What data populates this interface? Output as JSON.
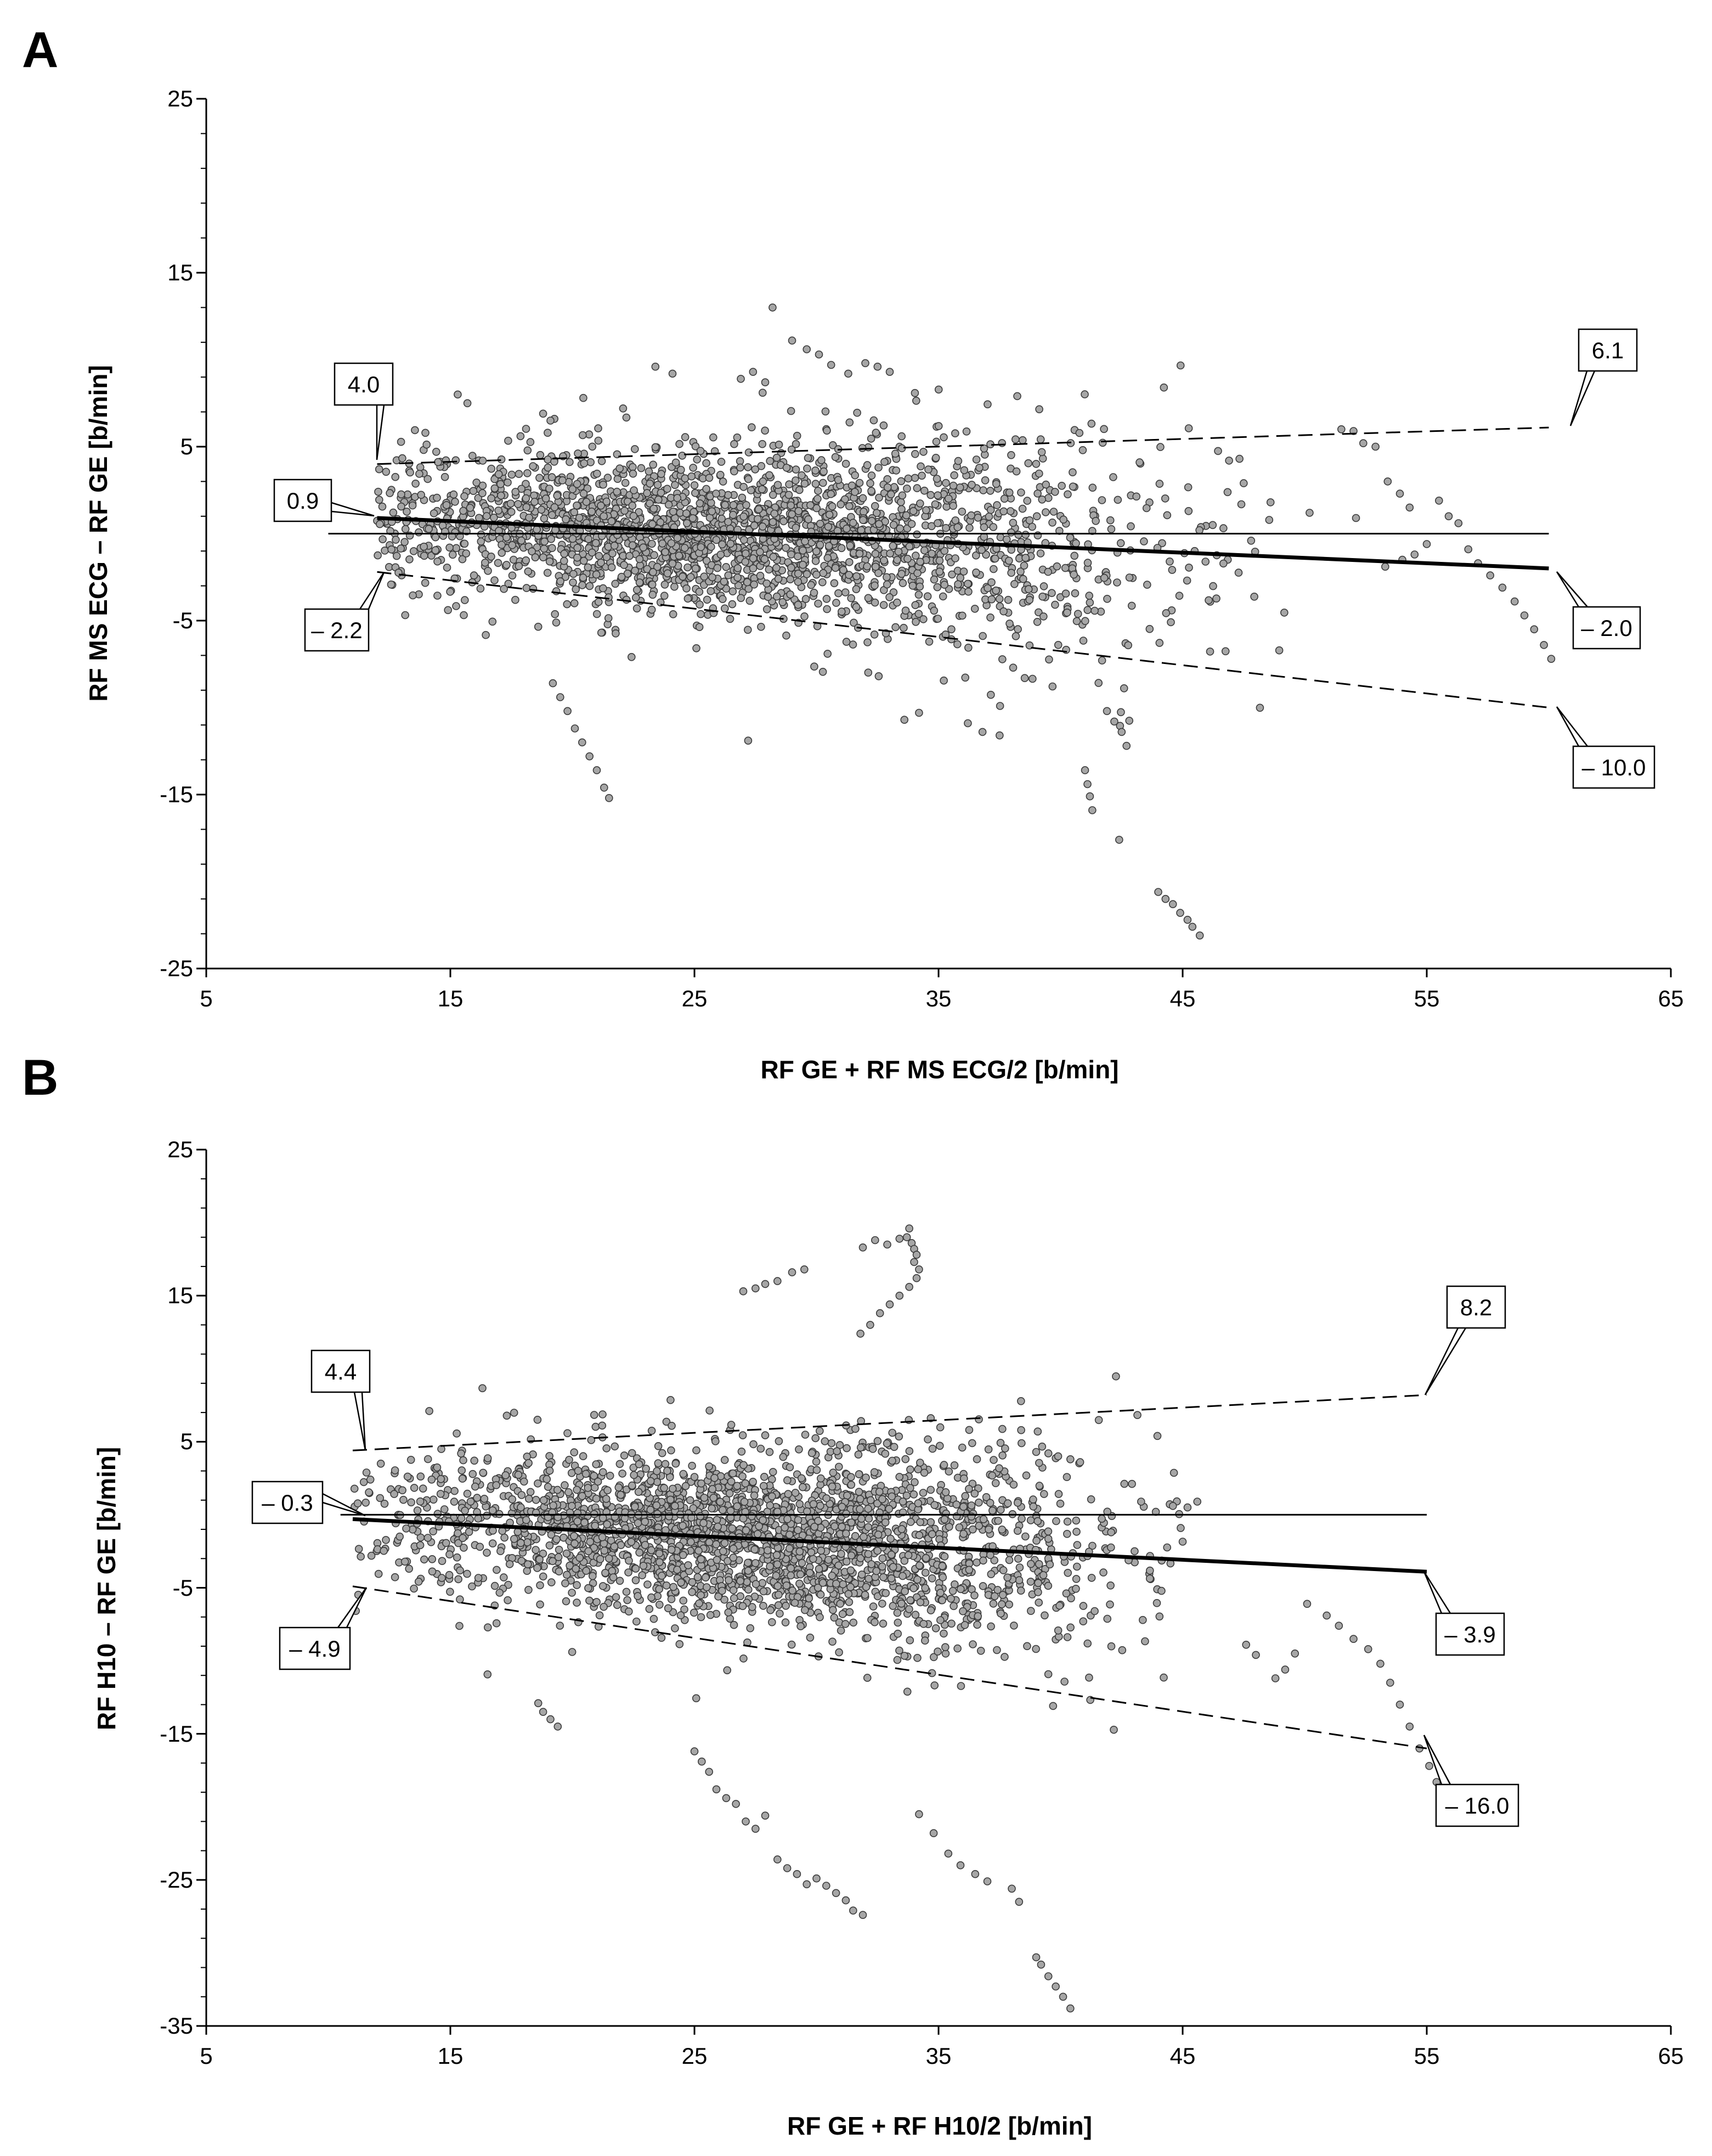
{
  "chart_data": [
    {
      "type": "scatter",
      "panel_label": "A",
      "xlabel": "RF GE + RF MS ECG/2 [b/min]",
      "ylabel": "RF MS ECG – RF GE [b/min]",
      "xlim": [
        5,
        65
      ],
      "ylim": [
        -25,
        25
      ],
      "xticks": [
        "5",
        "15",
        "25",
        "35",
        "45",
        "55",
        "65"
      ],
      "yticks": [
        "25",
        "15",
        "5",
        "-5",
        "-15",
        "-25"
      ],
      "point_cloud": {
        "n": 2400,
        "x_range": [
          12,
          60
        ],
        "x_center": 26,
        "x_spread": 8.5,
        "bias_intercept": 0.9,
        "bias_end": -2.0,
        "spread_sd": 2.3,
        "seed": 11
      },
      "outlier_series": [
        [
          [
            21.5,
            -15.2
          ],
          [
            21.3,
            -14.6
          ],
          [
            21.0,
            -13.6
          ],
          [
            20.7,
            -12.8
          ],
          [
            20.4,
            -12.0
          ],
          [
            20.1,
            -11.2
          ],
          [
            19.8,
            -10.2
          ],
          [
            19.5,
            -9.4
          ],
          [
            19.2,
            -8.6
          ]
        ],
        [
          [
            45.7,
            -23.1
          ],
          [
            45.4,
            -22.6
          ],
          [
            45.2,
            -22.2
          ],
          [
            44.9,
            -21.8
          ],
          [
            44.6,
            -21.3
          ],
          [
            44.3,
            -21.0
          ],
          [
            44.0,
            -20.6
          ]
        ],
        [
          [
            42.4,
            -17.6
          ],
          [
            41.3,
            -15.9
          ],
          [
            41.2,
            -15.1
          ],
          [
            41.1,
            -14.4
          ],
          [
            41.0,
            -13.6
          ],
          [
            42.7,
            -12.2
          ],
          [
            42.5,
            -11.4
          ],
          [
            42.2,
            -10.8
          ],
          [
            41.9,
            -10.2
          ]
        ],
        [
          [
            28.2,
            13.0
          ],
          [
            29.0,
            11.1
          ],
          [
            29.6,
            10.6
          ],
          [
            30.1,
            10.3
          ],
          [
            30.6,
            9.7
          ],
          [
            31.3,
            9.2
          ],
          [
            32.0,
            9.8
          ],
          [
            32.5,
            9.6
          ],
          [
            33.0,
            9.3
          ],
          [
            23.4,
            9.6
          ],
          [
            24.1,
            9.2
          ],
          [
            26.9,
            8.9
          ],
          [
            27.4,
            9.3
          ],
          [
            27.9,
            8.7
          ]
        ],
        [
          [
            51.5,
            6.0
          ],
          [
            52.0,
            5.9
          ],
          [
            52.4,
            5.2
          ],
          [
            52.9,
            5.0
          ],
          [
            53.4,
            3.0
          ],
          [
            53.9,
            2.3
          ],
          [
            54.3,
            1.5
          ],
          [
            52.1,
            0.9
          ],
          [
            50.2,
            1.2
          ],
          [
            48.6,
            1.8
          ]
        ],
        [
          [
            55.5,
            1.9
          ],
          [
            55.9,
            1.0
          ],
          [
            56.3,
            0.6
          ],
          [
            56.7,
            -0.9
          ],
          [
            57.1,
            -1.7
          ],
          [
            57.6,
            -2.4
          ],
          [
            58.1,
            -3.1
          ],
          [
            58.6,
            -3.9
          ],
          [
            59.0,
            -4.7
          ],
          [
            59.4,
            -5.5
          ],
          [
            59.8,
            -6.4
          ],
          [
            60.1,
            -7.2
          ],
          [
            55.0,
            -0.6
          ],
          [
            54.5,
            -1.2
          ],
          [
            54.0,
            -1.5
          ],
          [
            53.3,
            -1.9
          ]
        ],
        [
          [
            27.2,
            -11.9
          ],
          [
            36.2,
            -10.9
          ],
          [
            36.8,
            -11.4
          ],
          [
            37.5,
            -11.6
          ],
          [
            33.6,
            -10.7
          ],
          [
            34.2,
            -10.3
          ],
          [
            15.3,
            8.0
          ],
          [
            15.7,
            7.5
          ],
          [
            18.8,
            6.9
          ],
          [
            19.1,
            6.5
          ],
          [
            46.9,
            4.2
          ],
          [
            47.5,
            2.9
          ]
        ]
      ],
      "lines": {
        "zero_line": {
          "x": [
            10,
            60
          ],
          "y": [
            0,
            0
          ]
        },
        "bias_line": {
          "x": [
            12,
            60
          ],
          "y": [
            0.9,
            -2.0
          ]
        },
        "upper_loa": {
          "x": [
            12,
            60
          ],
          "y": [
            4.0,
            6.1
          ]
        },
        "lower_loa": {
          "x": [
            12,
            60
          ],
          "y": [
            -2.2,
            -10.0
          ]
        }
      },
      "callouts": [
        {
          "label": "4.0"
        },
        {
          "label": "6.1"
        },
        {
          "label": "0.9"
        },
        {
          "label": "– 2.2"
        },
        {
          "label": "– 2.0"
        },
        {
          "label": "– 10.0"
        }
      ]
    },
    {
      "type": "scatter",
      "panel_label": "B",
      "xlabel": "RF GE + RF H10/2 [b/min]",
      "ylabel": "RF H10 – RF GE [b/min]",
      "xlim": [
        5,
        65
      ],
      "ylim": [
        -35,
        25
      ],
      "xticks": [
        "5",
        "15",
        "25",
        "35",
        "45",
        "55",
        "65"
      ],
      "yticks": [
        "25",
        "15",
        "5",
        "-5",
        "-15",
        "-25",
        "-35"
      ],
      "point_cloud": {
        "n": 2600,
        "x_range": [
          11,
          55
        ],
        "x_center": 27,
        "x_spread": 8,
        "bias_intercept": -0.3,
        "bias_end": -3.9,
        "spread_sd": 2.8,
        "seed": 23
      },
      "outlier_series": [
        [
          [
            33.8,
            19.6
          ],
          [
            33.7,
            19.0
          ],
          [
            33.9,
            18.6
          ],
          [
            34.0,
            18.2
          ],
          [
            34.1,
            17.8
          ],
          [
            34.0,
            17.3
          ],
          [
            33.4,
            18.9
          ],
          [
            32.9,
            18.5
          ],
          [
            32.4,
            18.8
          ],
          [
            31.9,
            18.3
          ],
          [
            34.2,
            16.8
          ],
          [
            34.1,
            16.2
          ],
          [
            33.8,
            15.6
          ],
          [
            33.4,
            15.0
          ],
          [
            33.0,
            14.4
          ],
          [
            32.6,
            13.8
          ],
          [
            32.2,
            13.0
          ],
          [
            31.8,
            12.4
          ]
        ],
        [
          [
            29.5,
            16.8
          ],
          [
            29.0,
            16.6
          ],
          [
            28.4,
            16.0
          ],
          [
            27.9,
            15.8
          ],
          [
            27.5,
            15.5
          ],
          [
            27.0,
            15.3
          ]
        ],
        [
          [
            40.4,
            -33.8
          ],
          [
            40.1,
            -33.0
          ],
          [
            39.8,
            -32.3
          ],
          [
            39.5,
            -31.6
          ],
          [
            39.2,
            -30.8
          ],
          [
            39.0,
            -30.3
          ]
        ],
        [
          [
            38.3,
            -26.5
          ],
          [
            38.0,
            -25.6
          ],
          [
            37.0,
            -25.1
          ],
          [
            36.5,
            -24.6
          ],
          [
            35.9,
            -24.0
          ],
          [
            35.4,
            -23.2
          ],
          [
            34.8,
            -21.8
          ],
          [
            34.2,
            -20.5
          ]
        ],
        [
          [
            31.9,
            -27.4
          ],
          [
            31.5,
            -27.1
          ],
          [
            31.2,
            -26.4
          ],
          [
            30.8,
            -25.9
          ],
          [
            30.4,
            -25.4
          ],
          [
            30.0,
            -24.9
          ],
          [
            29.6,
            -25.3
          ],
          [
            29.2,
            -24.6
          ],
          [
            28.8,
            -24.2
          ],
          [
            28.4,
            -23.6
          ]
        ],
        [
          [
            27.9,
            -20.6
          ],
          [
            27.5,
            -21.5
          ],
          [
            27.1,
            -21.0
          ],
          [
            26.7,
            -19.8
          ],
          [
            26.3,
            -19.4
          ],
          [
            25.9,
            -18.8
          ],
          [
            25.6,
            -17.6
          ],
          [
            25.3,
            -16.9
          ],
          [
            25.0,
            -16.2
          ]
        ],
        [
          [
            19.4,
            -14.5
          ],
          [
            19.1,
            -14.0
          ],
          [
            18.8,
            -13.5
          ],
          [
            18.6,
            -12.9
          ]
        ],
        [
          [
            52.0,
            -8.5
          ],
          [
            52.6,
            -9.2
          ],
          [
            53.1,
            -10.2
          ],
          [
            53.5,
            -11.5
          ],
          [
            53.9,
            -13.0
          ],
          [
            54.3,
            -14.5
          ],
          [
            54.7,
            -16.0
          ],
          [
            55.1,
            -17.2
          ],
          [
            55.4,
            -18.3
          ],
          [
            51.4,
            -7.6
          ],
          [
            50.9,
            -6.9
          ],
          [
            50.1,
            -6.1
          ],
          [
            49.6,
            -9.5
          ],
          [
            49.2,
            -10.6
          ],
          [
            48.8,
            -11.2
          ],
          [
            47.6,
            -8.9
          ],
          [
            48.0,
            -9.6
          ]
        ],
        [
          [
            40.8,
            3.6
          ],
          [
            40.4,
            3.8
          ],
          [
            39.9,
            4.0
          ],
          [
            39.5,
            4.2
          ],
          [
            39.0,
            4.3
          ],
          [
            38.4,
            4.9
          ]
        ],
        [
          [
            45.6,
            0.9
          ],
          [
            45.2,
            0.5
          ],
          [
            44.6,
            0.6
          ],
          [
            43.9,
            0.2
          ],
          [
            43.3,
            0.9
          ]
        ]
      ],
      "lines": {
        "zero_line": {
          "x": [
            10.5,
            55
          ],
          "y": [
            0,
            0
          ]
        },
        "bias_line": {
          "x": [
            11,
            55
          ],
          "y": [
            -0.3,
            -3.9
          ]
        },
        "upper_loa": {
          "x": [
            11,
            55
          ],
          "y": [
            4.4,
            8.2
          ]
        },
        "lower_loa": {
          "x": [
            11,
            55
          ],
          "y": [
            -4.9,
            -16.0
          ]
        }
      },
      "callouts": [
        {
          "label": "4.4"
        },
        {
          "label": "8.2"
        },
        {
          "label": "– 0.3"
        },
        {
          "label": "– 4.9"
        },
        {
          "label": "– 3.9"
        },
        {
          "label": "– 16.0"
        }
      ]
    }
  ]
}
